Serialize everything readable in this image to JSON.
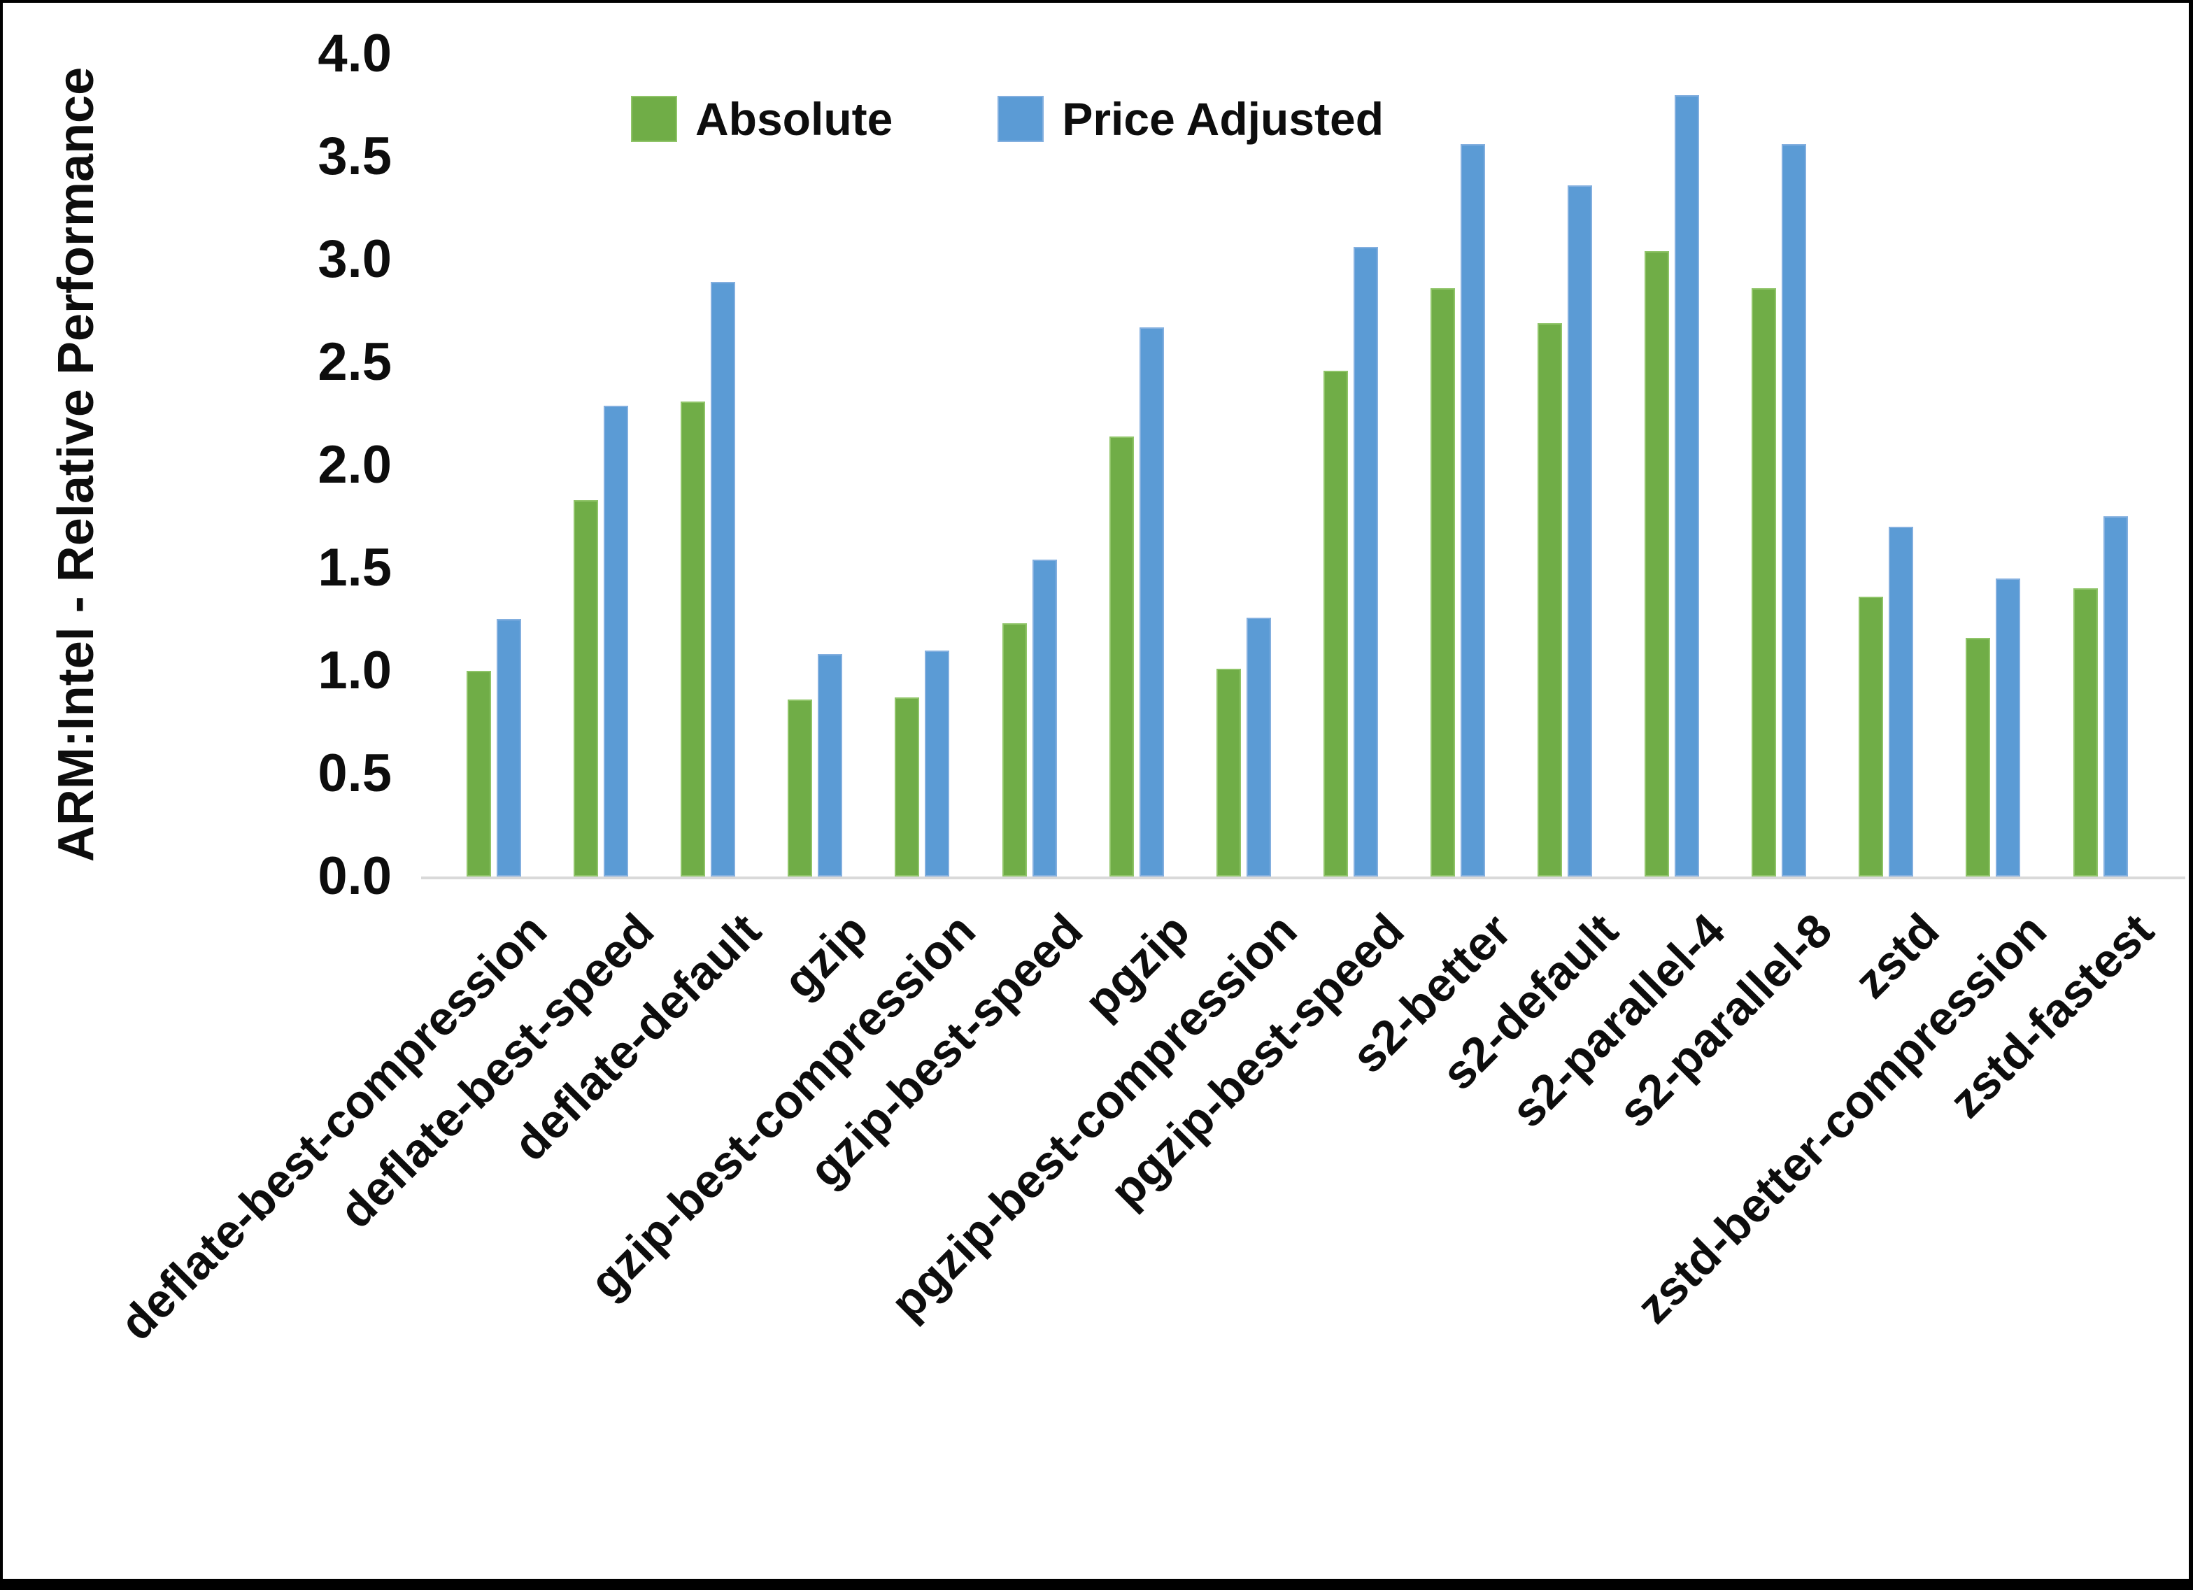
{
  "colors": {
    "absolute_fill": "#70AD47",
    "absolute_edge": "#8FC468",
    "price_adjusted_fill": "#5B9BD5",
    "price_adjusted_edge": "#83AFDF",
    "axis_line": "#D9D9D9",
    "text": "#0D0D0D",
    "frame_border": "#000000",
    "background": "#FFFFFF"
  },
  "chart_data": {
    "type": "bar",
    "title": "",
    "xlabel": "",
    "ylabel": "ARM:Intel - Relative Performance",
    "ylim": [
      0.0,
      4.0
    ],
    "ytick_step": 0.5,
    "ytick_labels": [
      "0.0",
      "0.5",
      "1.0",
      "1.5",
      "2.0",
      "2.5",
      "3.0",
      "3.5",
      "4.0"
    ],
    "grid": false,
    "legend_position": "top-center",
    "categories": [
      "deflate-best-compression",
      "deflate-best-speed",
      "deflate-default",
      "gzip",
      "gzip-best-compression",
      "gzip-best-speed",
      "pgzip",
      "pgzip-best-compression",
      "pgzip-best-speed",
      "s2-better",
      "s2-default",
      "s2-parallel-4",
      "s2-parallel-8",
      "zstd",
      "zstd-better-compression",
      "zstd-fastest"
    ],
    "series": [
      {
        "name": "Absolute",
        "color": "#70AD47",
        "values": [
          1.0,
          1.83,
          2.31,
          0.86,
          0.87,
          1.23,
          2.14,
          1.01,
          2.46,
          2.86,
          2.69,
          3.04,
          2.86,
          1.36,
          1.16,
          1.4
        ]
      },
      {
        "name": "Price Adjusted",
        "color": "#5B9BD5",
        "values": [
          1.25,
          2.29,
          2.89,
          1.08,
          1.1,
          1.54,
          2.67,
          1.26,
          3.06,
          3.56,
          3.36,
          3.8,
          3.56,
          1.7,
          1.45,
          1.75
        ]
      }
    ]
  }
}
